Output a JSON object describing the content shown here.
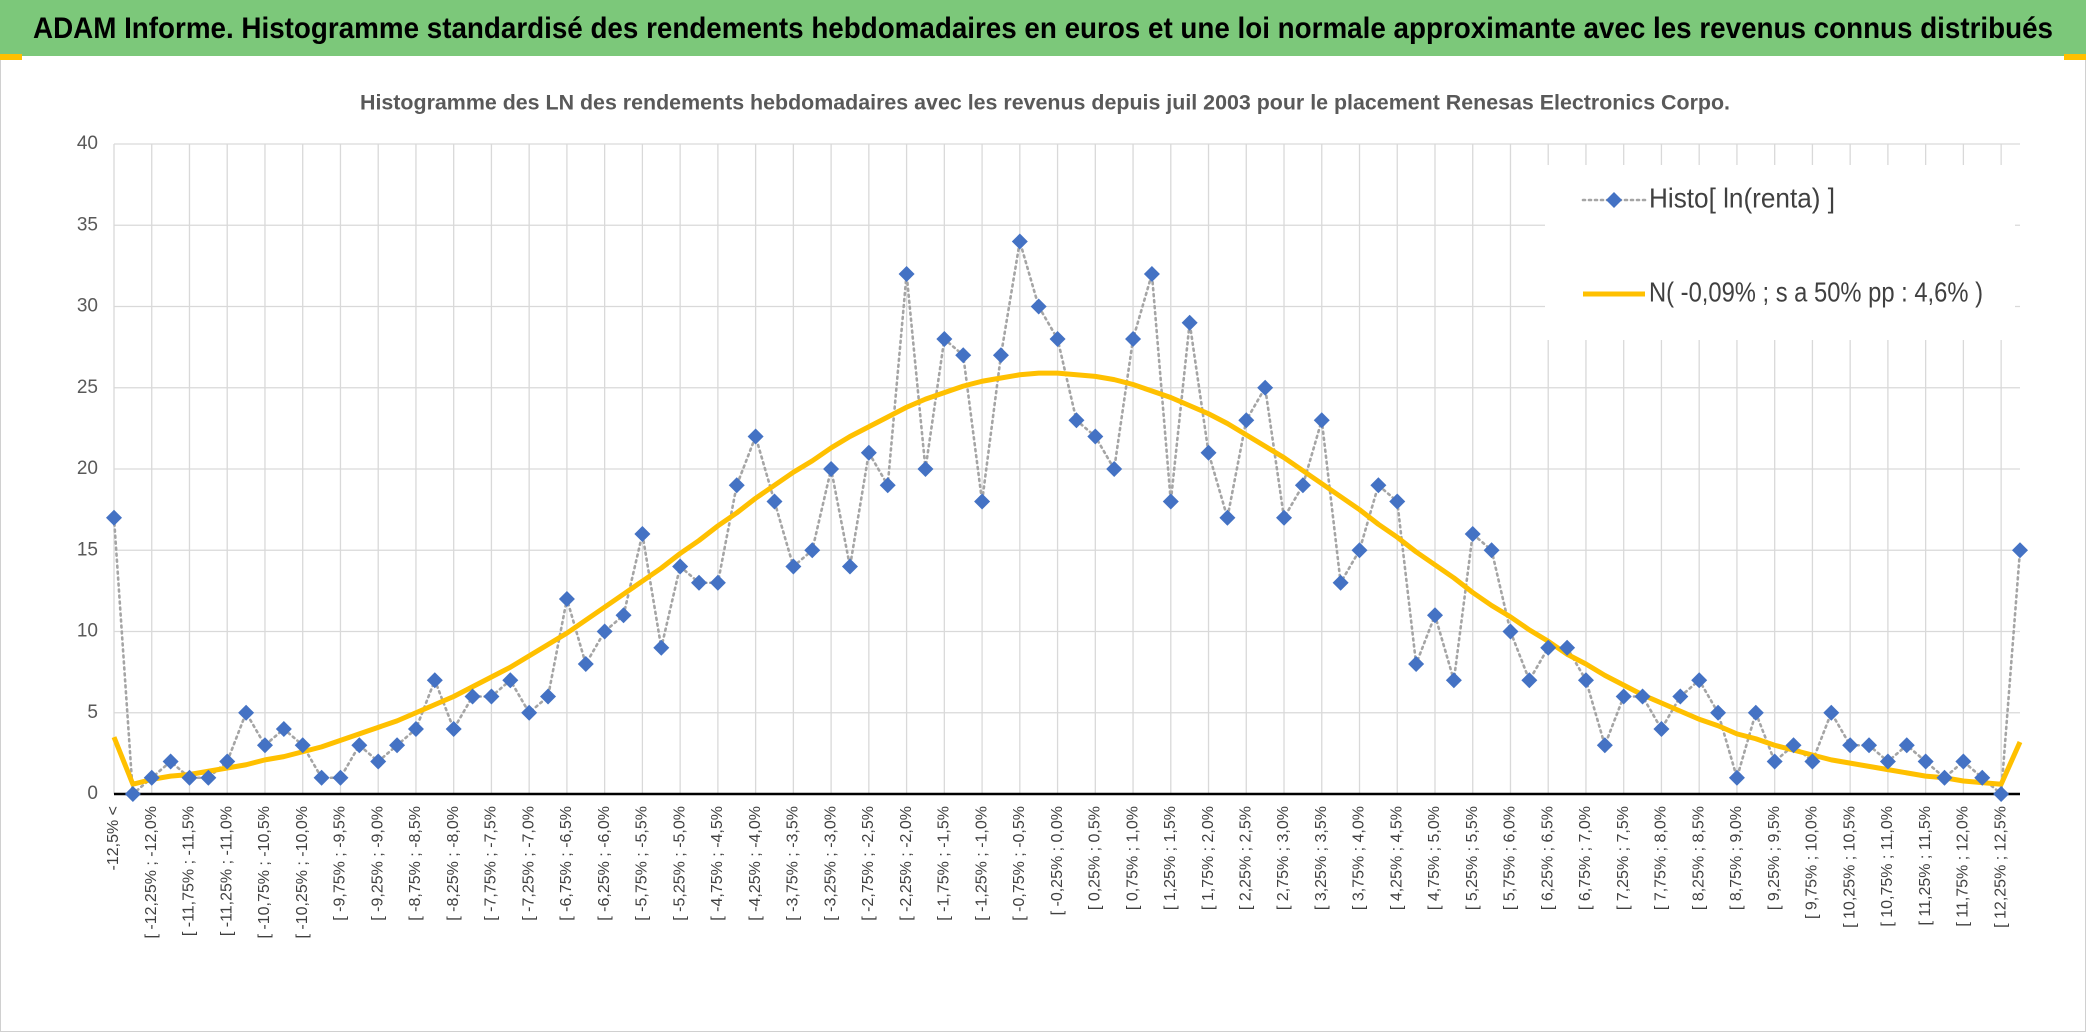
{
  "header": {
    "title": "ADAM Informe. Histogramme standardisé des rendements hebdomadaires en euros et une loi normale approximante avec les revenus connus distribués"
  },
  "chart_data": {
    "type": "line",
    "title": "Histogramme des LN des rendements hebdomadaires avec les revenus depuis juil 2003 pour le placement Renesas Electronics Corpo.",
    "categories": [
      "-12,5% <",
      null,
      "[ -12,25% ; -12,0%",
      null,
      "[ -11,75% ; -11,5%",
      null,
      "[ -11,25% ; -11,0%",
      null,
      "[ -10,75% ; -10,5%",
      null,
      "[ -10,25% ; -10,0%",
      null,
      "[ -9,75% ; -9,5%",
      null,
      "[ -9,25% ; -9,0%",
      null,
      "[ -8,75% ; -8,5%",
      null,
      "[ -8,25% ; -8,0%",
      null,
      "[ -7,75% ; -7,5%",
      null,
      "[ -7,25% ; -7,0%",
      null,
      "[ -6,75% ; -6,5%",
      null,
      "[ -6,25% ; -6,0%",
      null,
      "[ -5,75% ; -5,5%",
      null,
      "[ -5,25% ; -5,0%",
      null,
      "[ -4,75% ; -4,5%",
      null,
      "[ -4,25% ; -4,0%",
      null,
      "[ -3,75% ; -3,5%",
      null,
      "[ -3,25% ; -3,0%",
      null,
      "[ -2,75% ; -2,5%",
      null,
      "[ -2,25% ; -2,0%",
      null,
      "[ -1,75% ; -1,5%",
      null,
      "[ -1,25% ; -1,0%",
      null,
      "[ -0,75% ; -0,5%",
      null,
      "[ -0,25% ; 0,0%",
      null,
      "[ 0,25% ; 0,5%",
      null,
      "[ 0,75% ; 1,0%",
      null,
      "[ 1,25% ; 1,5%",
      null,
      "[ 1,75% ; 2,0%",
      null,
      "[ 2,25% ; 2,5%",
      null,
      "[ 2,75% ; 3,0%",
      null,
      "[ 3,25% ; 3,5%",
      null,
      "[ 3,75% ; 4,0%",
      null,
      "[ 4,25% ; 4,5%",
      null,
      "[ 4,75% ; 5,0%",
      null,
      "[ 5,25% ; 5,5%",
      null,
      "[ 5,75% ; 6,0%",
      null,
      "[ 6,25% ; 6,5%",
      null,
      "[ 6,75% ; 7,0%",
      null,
      "[ 7,25% ; 7,5%",
      null,
      "[ 7,75% ; 8,0%",
      null,
      "[ 8,25% ; 8,5%",
      null,
      "[ 8,75% ; 9,0%",
      null,
      "[ 9,25% ; 9,5%",
      null,
      "[ 9,75% ; 10,0%",
      null,
      "[ 10,25% ; 10,5%",
      null,
      "[ 10,75% ; 11,0%",
      null,
      "[ 11,25% ; 11,5%",
      null,
      "[ 11,75% ; 12,0%",
      null,
      "[ 12,25% ; 12,5%",
      null
    ],
    "series": [
      {
        "name": "Histo[ ln(renta) ]",
        "color": "#4472C4",
        "line_color": "#A5A5A5",
        "values": [
          17,
          0,
          1,
          2,
          1,
          1,
          2,
          5,
          3,
          4,
          3,
          1,
          1,
          3,
          2,
          3,
          4,
          7,
          4,
          6,
          6,
          7,
          5,
          6,
          12,
          8,
          10,
          11,
          16,
          9,
          14,
          13,
          13,
          19,
          22,
          18,
          14,
          15,
          20,
          14,
          21,
          19,
          32,
          20,
          28,
          27,
          18,
          27,
          34,
          30,
          28,
          23,
          22,
          20,
          28,
          32,
          18,
          29,
          21,
          17,
          23,
          25,
          17,
          19,
          23,
          13,
          15,
          19,
          18,
          8,
          11,
          7,
          16,
          15,
          10,
          7,
          9,
          9,
          7,
          3,
          6,
          6,
          4,
          6,
          7,
          5,
          1,
          5,
          2,
          3,
          2,
          5,
          3,
          3,
          2,
          3,
          2,
          1,
          2,
          1,
          0,
          15
        ]
      },
      {
        "name": "N( -0,09% ; s a 50% pp : 4,6% )",
        "color": "#FFC000",
        "values": [
          3.5,
          0.6,
          0.9,
          1.1,
          1.2,
          1.4,
          1.6,
          1.8,
          2.1,
          2.3,
          2.6,
          2.9,
          3.3,
          3.7,
          4.1,
          4.5,
          5.0,
          5.5,
          6.0,
          6.6,
          7.2,
          7.8,
          8.5,
          9.2,
          9.9,
          10.7,
          11.5,
          12.3,
          13.1,
          13.9,
          14.8,
          15.6,
          16.5,
          17.3,
          18.2,
          19.0,
          19.8,
          20.5,
          21.3,
          22.0,
          22.6,
          23.2,
          23.8,
          24.3,
          24.7,
          25.1,
          25.4,
          25.6,
          25.8,
          25.9,
          25.9,
          25.8,
          25.7,
          25.5,
          25.2,
          24.8,
          24.4,
          23.9,
          23.4,
          22.8,
          22.1,
          21.4,
          20.7,
          19.9,
          19.1,
          18.3,
          17.5,
          16.6,
          15.8,
          14.9,
          14.1,
          13.3,
          12.4,
          11.6,
          10.9,
          10.1,
          9.4,
          8.6,
          8.0,
          7.3,
          6.7,
          6.1,
          5.6,
          5.1,
          4.6,
          4.2,
          3.7,
          3.4,
          3.0,
          2.7,
          2.4,
          2.1,
          1.9,
          1.7,
          1.5,
          1.3,
          1.1,
          1.0,
          0.8,
          0.7,
          0.6,
          3.2
        ]
      }
    ],
    "ylim": [
      0,
      40
    ],
    "yticks": [
      0,
      5,
      10,
      15,
      20,
      25,
      30,
      35,
      40
    ],
    "grid": true,
    "legend": "top-right"
  }
}
